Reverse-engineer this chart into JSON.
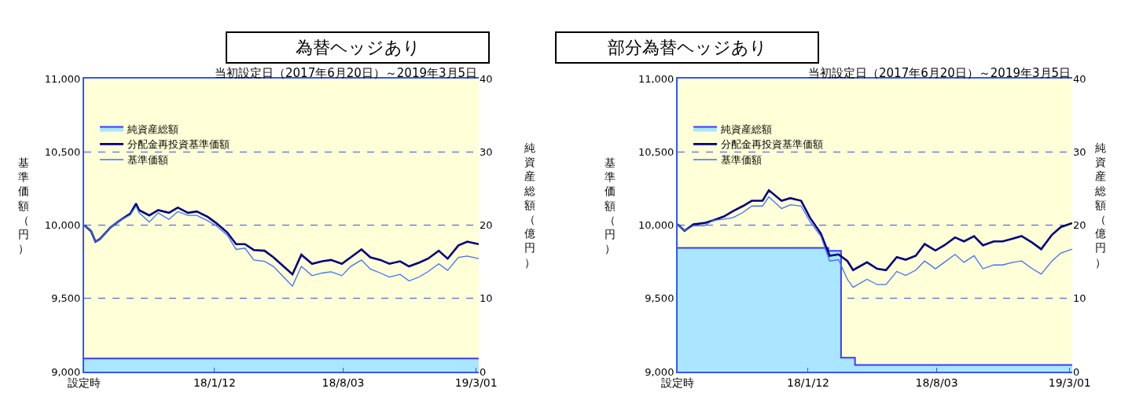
{
  "chart_data": [
    {
      "type": "line",
      "title": "為替ヘッジあり",
      "subtitle": "当初設定日（2017年6月20日）～2019年3月5日",
      "ylabel": "基準価額（円）",
      "y2label": "純資産総額（億円）",
      "xlim": [
        "2017-06-20",
        "2019-03-05"
      ],
      "xticks": [
        {
          "value": "2017-06-20",
          "label": "設定時"
        },
        {
          "value": "2018-01-12",
          "label": "18/1/12"
        },
        {
          "value": "2018-08-03",
          "label": "18/8/03"
        },
        {
          "value": "2019-03-01",
          "label": "19/3/01"
        }
      ],
      "ylim": [
        9000,
        11000
      ],
      "yticks": [
        {
          "value": 9000,
          "label": "9,000"
        },
        {
          "value": 9500,
          "label": "9,500"
        },
        {
          "value": 10000,
          "label": "10,000"
        },
        {
          "value": 10500,
          "label": "10,500"
        },
        {
          "value": 11000,
          "label": "11,000"
        }
      ],
      "y2lim": [
        0,
        40
      ],
      "y2ticks": [
        0,
        10,
        20,
        30,
        40
      ],
      "grid": "y",
      "legend": "top left",
      "series": [
        {
          "name": "純資産総額",
          "type": "area",
          "axis": "y2",
          "color": "#3a3aff",
          "x": [
            "2017-06-20",
            "2019-03-05"
          ],
          "values": [
            1.8,
            1.8
          ]
        },
        {
          "name": "分配金再投資基準価額",
          "color": "#000080",
          "x": [
            "2017-06-20",
            "2017-07-01",
            "2017-07-08",
            "2017-07-15",
            "2017-08-01",
            "2017-08-15",
            "2017-09-01",
            "2017-09-10",
            "2017-09-15",
            "2017-10-01",
            "2017-10-15",
            "2017-11-01",
            "2017-11-15",
            "2017-12-01",
            "2017-12-15",
            "2018-01-01",
            "2018-01-15",
            "2018-02-01",
            "2018-02-15",
            "2018-03-01",
            "2018-03-15",
            "2018-04-01",
            "2018-04-15",
            "2018-05-01",
            "2018-05-15",
            "2018-05-29",
            "2018-06-15",
            "2018-07-01",
            "2018-07-15",
            "2018-08-01",
            "2018-08-15",
            "2018-09-01",
            "2018-09-15",
            "2018-10-01",
            "2018-10-15",
            "2018-11-01",
            "2018-11-15",
            "2018-12-01",
            "2018-12-15",
            "2019-01-01",
            "2019-01-15",
            "2019-02-01",
            "2019-02-15",
            "2019-03-05"
          ],
          "values": [
            10000,
            9959,
            9887,
            9905,
            9986,
            10030,
            10079,
            10147,
            10102,
            10066,
            10102,
            10084,
            10120,
            10084,
            10093,
            10057,
            10013,
            9950,
            9870,
            9870,
            9830,
            9825,
            9780,
            9718,
            9664,
            9798,
            9736,
            9753,
            9762,
            9736,
            9780,
            9834,
            9780,
            9762,
            9736,
            9753,
            9718,
            9744,
            9771,
            9825,
            9771,
            9861,
            9887,
            9870
          ]
        },
        {
          "name": "基準価額",
          "color": "#3f6fff",
          "x": [
            "2017-06-20",
            "2017-07-01",
            "2017-07-08",
            "2017-07-15",
            "2017-08-01",
            "2017-08-15",
            "2017-09-01",
            "2017-09-10",
            "2017-09-15",
            "2017-10-01",
            "2017-10-15",
            "2017-11-01",
            "2017-11-15",
            "2017-12-01",
            "2017-12-15",
            "2018-01-01",
            "2018-01-15",
            "2018-02-01",
            "2018-02-15",
            "2018-03-01",
            "2018-03-15",
            "2018-04-01",
            "2018-04-15",
            "2018-05-01",
            "2018-05-15",
            "2018-05-29",
            "2018-06-15",
            "2018-07-01",
            "2018-07-15",
            "2018-08-01",
            "2018-08-15",
            "2018-09-01",
            "2018-09-15",
            "2018-10-01",
            "2018-10-15",
            "2018-11-01",
            "2018-11-15",
            "2018-12-01",
            "2018-12-15",
            "2019-01-01",
            "2019-01-15",
            "2019-02-01",
            "2019-02-15",
            "2019-03-05"
          ],
          "values": [
            10000,
            9959,
            9887,
            9905,
            9986,
            10030,
            10070,
            10130,
            10084,
            10021,
            10084,
            10039,
            10093,
            10066,
            10066,
            10030,
            9995,
            9932,
            9834,
            9843,
            9762,
            9753,
            9718,
            9646,
            9584,
            9718,
            9655,
            9673,
            9682,
            9655,
            9718,
            9762,
            9700,
            9673,
            9646,
            9664,
            9619,
            9646,
            9682,
            9736,
            9691,
            9780,
            9789,
            9771
          ]
        }
      ]
    },
    {
      "type": "line",
      "title": "部分為替ヘッジあり",
      "subtitle": "当初設定日（2017年6月20日）～2019年3月5日",
      "ylabel": "基準価額（円）",
      "y2label": "純資産総額（億円）",
      "xlim": [
        "2017-06-20",
        "2019-03-05"
      ],
      "xticks": [
        {
          "value": "2017-06-20",
          "label": "設定時"
        },
        {
          "value": "2018-01-12",
          "label": "18/1/12"
        },
        {
          "value": "2018-08-03",
          "label": "18/8/03"
        },
        {
          "value": "2019-03-01",
          "label": "19/3/01"
        }
      ],
      "ylim": [
        9000,
        11000
      ],
      "yticks": [
        {
          "value": 9000,
          "label": "9,000"
        },
        {
          "value": 9500,
          "label": "9,500"
        },
        {
          "value": 10000,
          "label": "10,000"
        },
        {
          "value": 10500,
          "label": "10,500"
        },
        {
          "value": 11000,
          "label": "11,000"
        }
      ],
      "y2lim": [
        0,
        40
      ],
      "y2ticks": [
        0,
        10,
        20,
        30,
        40
      ],
      "grid": "y",
      "legend": "top left",
      "series": [
        {
          "name": "純資産総額",
          "type": "area",
          "axis": "y2",
          "color": "#3a3aff",
          "x": [
            "2017-06-20",
            "2018-02-13",
            "2018-02-13",
            "2018-03-05",
            "2018-03-05",
            "2018-03-27",
            "2018-03-27",
            "2019-03-05"
          ],
          "values": [
            16.9,
            16.9,
            16.5,
            16.5,
            1.9,
            1.9,
            0.9,
            0.9
          ]
        },
        {
          "name": "分配金再投資基準価額",
          "color": "#000080",
          "x": [
            "2017-06-20",
            "2017-07-01",
            "2017-07-15",
            "2017-08-01",
            "2017-08-15",
            "2017-09-01",
            "2017-09-15",
            "2017-10-01",
            "2017-10-15",
            "2017-11-01",
            "2017-11-11",
            "2017-12-01",
            "2017-12-15",
            "2018-01-01",
            "2018-01-15",
            "2018-02-01",
            "2018-02-15",
            "2018-03-01",
            "2018-03-15",
            "2018-03-24",
            "2018-04-15",
            "2018-05-01",
            "2018-05-15",
            "2018-06-01",
            "2018-06-15",
            "2018-07-01",
            "2018-07-15",
            "2018-08-01",
            "2018-08-15",
            "2018-09-01",
            "2018-09-15",
            "2018-10-01",
            "2018-10-15",
            "2018-11-01",
            "2018-11-15",
            "2018-12-01",
            "2018-12-15",
            "2019-01-01",
            "2019-01-15",
            "2019-02-01",
            "2019-02-15",
            "2019-03-05"
          ],
          "values": [
            10005,
            9961,
            10005,
            10014,
            10032,
            10059,
            10095,
            10130,
            10166,
            10166,
            10238,
            10166,
            10184,
            10166,
            10050,
            9943,
            9791,
            9800,
            9755,
            9693,
            9746,
            9702,
            9693,
            9782,
            9764,
            9791,
            9871,
            9827,
            9862,
            9916,
            9889,
            9925,
            9862,
            9889,
            9889,
            9907,
            9925,
            9880,
            9836,
            9934,
            9987,
            10014
          ]
        },
        {
          "name": "基準価額",
          "color": "#3f6fff",
          "x": [
            "2017-06-20",
            "2017-07-01",
            "2017-07-15",
            "2017-08-01",
            "2017-08-15",
            "2017-09-01",
            "2017-09-15",
            "2017-10-01",
            "2017-10-15",
            "2017-11-01",
            "2017-11-11",
            "2017-12-01",
            "2017-12-15",
            "2018-01-01",
            "2018-01-15",
            "2018-02-01",
            "2018-02-15",
            "2018-03-01",
            "2018-03-15",
            "2018-03-24",
            "2018-04-15",
            "2018-05-01",
            "2018-05-15",
            "2018-06-01",
            "2018-06-15",
            "2018-07-01",
            "2018-07-15",
            "2018-08-01",
            "2018-08-15",
            "2018-09-01",
            "2018-09-15",
            "2018-10-01",
            "2018-10-15",
            "2018-11-01",
            "2018-11-15",
            "2018-12-01",
            "2018-12-15",
            "2019-01-01",
            "2019-01-15",
            "2019-02-01",
            "2019-02-15",
            "2019-03-05"
          ],
          "values": [
            10005,
            9961,
            9996,
            9996,
            10032,
            10041,
            10050,
            10086,
            10130,
            10130,
            10193,
            10113,
            10139,
            10130,
            10023,
            9925,
            9755,
            9764,
            9630,
            9576,
            9630,
            9594,
            9594,
            9684,
            9657,
            9693,
            9755,
            9702,
            9746,
            9800,
            9746,
            9791,
            9702,
            9728,
            9728,
            9746,
            9755,
            9702,
            9666,
            9755,
            9809,
            9836
          ]
        }
      ]
    }
  ]
}
